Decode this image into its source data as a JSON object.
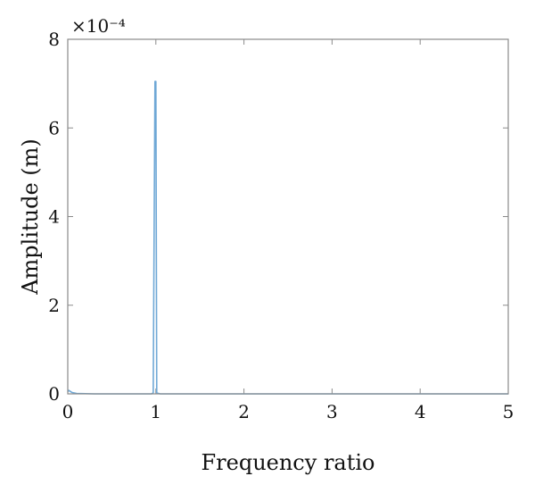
{
  "chart_data": {
    "type": "line",
    "title": "",
    "xlabel": "Frequency ratio",
    "ylabel": "Amplitude (m)",
    "y_exponent_label": "×10⁻⁴",
    "xlim": [
      0,
      5
    ],
    "ylim": [
      0,
      8
    ],
    "x_ticks": [
      0,
      1,
      2,
      3,
      4,
      5
    ],
    "y_ticks": [
      0,
      2,
      4,
      6,
      8
    ],
    "x_tick_labels": [
      "0",
      "1",
      "2",
      "3",
      "4",
      "5"
    ],
    "y_tick_labels": [
      "0",
      "2",
      "4",
      "6",
      "8"
    ],
    "grid": false,
    "legend": "none",
    "series": [
      {
        "color": "#6fa8d6",
        "x": [
          0.0,
          0.01,
          0.05,
          0.1,
          0.3,
          0.5,
          0.8,
          0.95,
          0.97,
          0.99,
          1.0,
          1.01,
          1.03,
          1.05,
          1.5,
          2.0,
          3.0,
          4.0,
          5.0
        ],
        "y": [
          0.05,
          0.08,
          0.03,
          0.01,
          0.0,
          0.0,
          0.0,
          0.0,
          0.02,
          7.05,
          7.05,
          0.02,
          0.01,
          0.0,
          0.0,
          0.0,
          0.0,
          0.0,
          0.0
        ]
      }
    ]
  }
}
